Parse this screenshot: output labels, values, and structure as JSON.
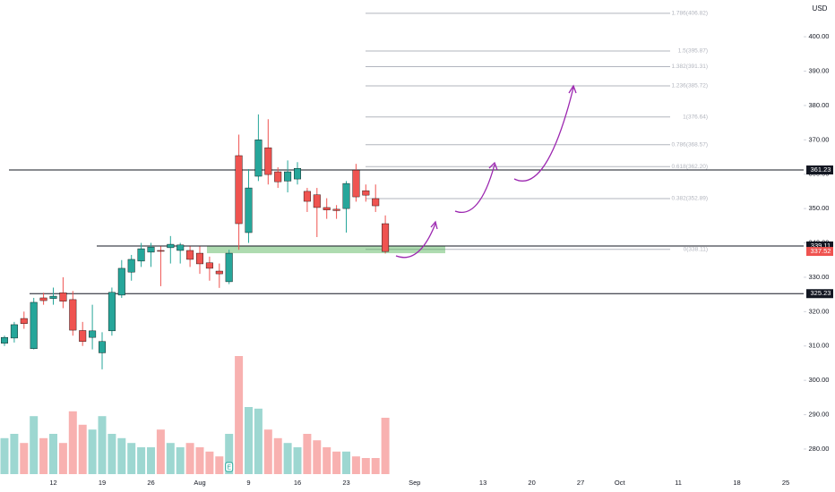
{
  "chart_data": {
    "type": "candlestick",
    "currency": "USD",
    "categories": [
      null,
      null,
      null,
      null,
      null,
      "12",
      null,
      null,
      null,
      null,
      "19",
      null,
      null,
      null,
      null,
      "26",
      null,
      null,
      null,
      null,
      "Aug",
      null,
      null,
      null,
      null,
      "9",
      null,
      null,
      null,
      null,
      "16",
      null,
      null,
      null,
      null,
      "23",
      null,
      null,
      null,
      null,
      null,
      null,
      "Sep",
      null,
      null,
      null,
      null,
      null,
      null,
      "13",
      null,
      null,
      null,
      null,
      "20",
      null,
      null,
      null,
      null,
      "27",
      null,
      null,
      null,
      "Oct",
      null,
      null,
      null,
      null,
      null,
      "11",
      null,
      null,
      null,
      null,
      null,
      "18",
      null,
      null,
      null,
      null,
      "25",
      null
    ],
    "open": [
      310.8,
      312.3,
      318,
      309.2,
      324,
      323.8,
      325.5,
      323.5,
      314.5,
      312.5,
      308,
      314.4,
      324.8,
      331.5,
      334.7,
      337.3,
      337.8,
      338.6,
      337.8,
      337.8,
      337,
      334.2,
      331.8,
      328.7,
      365.4,
      343,
      359.4,
      367.7,
      360.7,
      358,
      358.6,
      355,
      354,
      350.3,
      349.8,
      350,
      361.2,
      355.2,
      352.9,
      345.6,
      null,
      null,
      null,
      null,
      null,
      null,
      null,
      null,
      null,
      null,
      null,
      null,
      null,
      null,
      null,
      null,
      null,
      null,
      null,
      null,
      null,
      null,
      null,
      null,
      null,
      null,
      null,
      null,
      null,
      null,
      null,
      null,
      null,
      null,
      null,
      null,
      null,
      null,
      null,
      null,
      null,
      null
    ],
    "high": [
      313,
      317,
      320,
      324,
      325.5,
      327,
      330,
      326,
      317,
      322,
      314,
      327,
      335,
      336.5,
      340,
      340,
      339,
      342,
      340,
      339,
      339,
      336,
      334,
      338,
      371.5,
      361.5,
      377.4,
      376,
      362,
      364,
      363.5,
      356,
      356,
      353,
      351,
      358,
      363,
      357,
      357,
      348,
      null,
      null,
      null,
      null,
      null,
      null,
      null,
      null,
      null,
      null,
      null,
      null,
      null,
      null,
      null,
      null,
      null,
      null,
      null,
      null,
      null,
      null,
      null,
      null,
      null,
      null,
      null,
      null,
      null,
      null,
      null,
      null,
      null,
      null,
      null,
      null,
      null,
      null,
      null,
      null,
      null,
      null
    ],
    "low": [
      310,
      311,
      315,
      309,
      322,
      322,
      321,
      313,
      310,
      309,
      303.2,
      313,
      324,
      329,
      333,
      333,
      327.4,
      334,
      334,
      333,
      331,
      329,
      326.9,
      328,
      338,
      340,
      358,
      357,
      356,
      354.7,
      357,
      349,
      341.7,
      347,
      347,
      343,
      352,
      352,
      349,
      336.9,
      null,
      null,
      null,
      null,
      null,
      null,
      null,
      null,
      null,
      null,
      null,
      null,
      null,
      null,
      null,
      null,
      null,
      null,
      null,
      null,
      null,
      null,
      null,
      null,
      null,
      null,
      null,
      null,
      null,
      null,
      null,
      null,
      null,
      null,
      null,
      null,
      null,
      null,
      null,
      null,
      null,
      null
    ],
    "close": [
      312.5,
      316.2,
      316.5,
      322.7,
      323.2,
      324.5,
      323,
      314.6,
      311.3,
      314.4,
      311.3,
      325.6,
      332.6,
      335.2,
      338.3,
      338.8,
      337.6,
      339.6,
      339.4,
      335.2,
      333.9,
      332.6,
      331,
      337,
      345.6,
      356,
      370,
      359.9,
      357.8,
      360.7,
      361.7,
      352.1,
      350.3,
      349.6,
      349.4,
      357.3,
      353.4,
      353.9,
      350.8,
      337.5,
      null,
      null,
      null,
      null,
      null,
      null,
      null,
      null,
      null,
      null,
      null,
      null,
      null,
      null,
      null,
      null,
      null,
      null,
      null,
      null,
      null,
      null,
      null,
      null,
      null,
      null,
      null,
      null,
      null,
      null,
      null,
      null,
      null,
      null,
      null,
      null,
      null,
      null,
      null,
      null,
      null,
      null
    ],
    "volume": [
      6.7,
      7.5,
      5.8,
      10.8,
      6.7,
      7.5,
      5.8,
      11.7,
      9.2,
      8.3,
      10.8,
      7.5,
      6.7,
      5.8,
      5,
      5,
      8.3,
      5.8,
      5,
      5.8,
      5,
      4.2,
      3.3,
      7.5,
      22,
      12.5,
      12.2,
      8.3,
      6.7,
      5.8,
      5,
      7.5,
      6.3,
      5,
      4.2,
      4.2,
      3.3,
      3,
      3,
      10.5,
      null,
      null,
      null,
      null,
      null,
      null,
      null,
      null,
      null,
      null,
      null,
      null,
      null,
      null,
      null,
      null,
      null,
      null,
      null,
      null,
      null,
      null,
      null,
      null,
      null,
      null,
      null,
      null,
      null,
      null,
      null,
      null,
      null,
      null,
      null,
      null,
      null,
      null,
      null,
      null,
      null,
      null
    ],
    "up_color": "#26a69a",
    "down_color": "#ef5350",
    "ylim": [
      272.7,
      410.7
    ],
    "yticks": [
      {
        "value": 280,
        "label": "280.00"
      },
      {
        "value": 290,
        "label": "290.00"
      },
      {
        "value": 300,
        "label": "300.00"
      },
      {
        "value": 310,
        "label": "310.00"
      },
      {
        "value": 320,
        "label": "320.00"
      },
      {
        "value": 330,
        "label": "330.00"
      },
      {
        "value": 340,
        "label": "340.00"
      },
      {
        "value": 350,
        "label": "350.00"
      },
      {
        "value": 360,
        "label": "360.00"
      },
      {
        "value": 370,
        "label": "370.00"
      },
      {
        "value": 380,
        "label": "380.00"
      },
      {
        "value": 390,
        "label": "390.00"
      },
      {
        "value": 400,
        "label": "400.00"
      }
    ],
    "vlim": [
      0,
      25
    ],
    "price_lines": [
      361.23,
      339.11,
      325.23
    ],
    "last_price": 337.52,
    "zone": [
      337.0,
      339.1
    ],
    "fib_levels": [
      {
        "value": 406.82,
        "label": "1.786(406.82)"
      },
      {
        "value": 395.87,
        "label": "1.5(395.87)"
      },
      {
        "value": 391.31,
        "label": "1.382(391.31)"
      },
      {
        "value": 385.72,
        "label": "1.236(385.72)"
      },
      {
        "value": 376.64,
        "label": "1(376.64)"
      },
      {
        "value": 368.57,
        "label": "0.786(368.57)"
      },
      {
        "value": 362.2,
        "label": "0.618(362.20)"
      },
      {
        "value": 352.89,
        "label": "0.382(352.89)"
      },
      {
        "value": 338.11,
        "label": "0(338.11)"
      }
    ],
    "earnings_marker": "E"
  }
}
